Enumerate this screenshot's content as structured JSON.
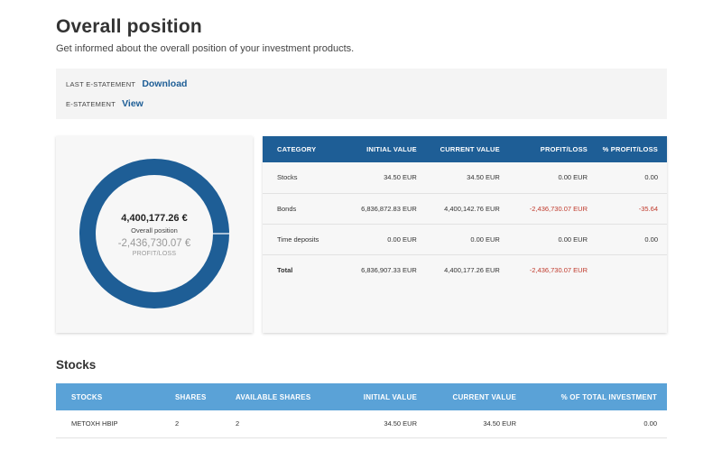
{
  "page": {
    "title": "Overall position",
    "subtitle": "Get informed about the overall position of your investment products."
  },
  "statements": {
    "last_label": "LAST E-STATEMENT",
    "last_link": "Download",
    "estatement_label": "E-STATEMENT",
    "estatement_link": "View"
  },
  "donut": {
    "value": "4,400,177.26 €",
    "label": "Overall position",
    "profit_loss": "-2,436,730.07 €",
    "profit_loss_label": "PROFIT/LOSS",
    "shares": [
      1e-05,
      0.99999
    ],
    "colors": {
      "main": "#1e5e96",
      "gap": "#ffffff"
    }
  },
  "summary": {
    "headers": [
      "CATEGORY",
      "INITIAL VALUE",
      "CURRENT VALUE",
      "PROFIT/LOSS",
      "% PROFIT/LOSS"
    ],
    "rows": [
      {
        "category": "Stocks",
        "initial": "34.50 EUR",
        "current": "34.50 EUR",
        "pl": "0.00 EUR",
        "pct": "0.00",
        "negative": false
      },
      {
        "category": "Bonds",
        "initial": "6,836,872.83 EUR",
        "current": "4,400,142.76 EUR",
        "pl": "-2,436,730.07 EUR",
        "pct": "-35.64",
        "negative": true
      },
      {
        "category": "Time deposits",
        "initial": "0.00 EUR",
        "current": "0.00 EUR",
        "pl": "0.00 EUR",
        "pct": "0.00",
        "negative": false
      }
    ],
    "total": {
      "category": "Total",
      "initial": "6,836,907.33 EUR",
      "current": "4,400,177.26 EUR",
      "pl": "-2,436,730.07 EUR",
      "pct": ""
    }
  },
  "stocks": {
    "title": "Stocks",
    "headers": [
      "STOCKS",
      "SHARES",
      "AVAILABLE SHARES",
      "INITIAL VALUE",
      "CURRENT VALUE",
      "% OF TOTAL INVESTMENT"
    ],
    "rows": [
      {
        "name": "METOXH HBIP",
        "shares": "2",
        "available": "2",
        "initial": "34.50 EUR",
        "current": "34.50 EUR",
        "pct": "0.00"
      }
    ]
  },
  "colors": {
    "primary_blue": "#1e5e96",
    "light_blue": "#5aa2d7",
    "negative_red": "#c0392b"
  }
}
